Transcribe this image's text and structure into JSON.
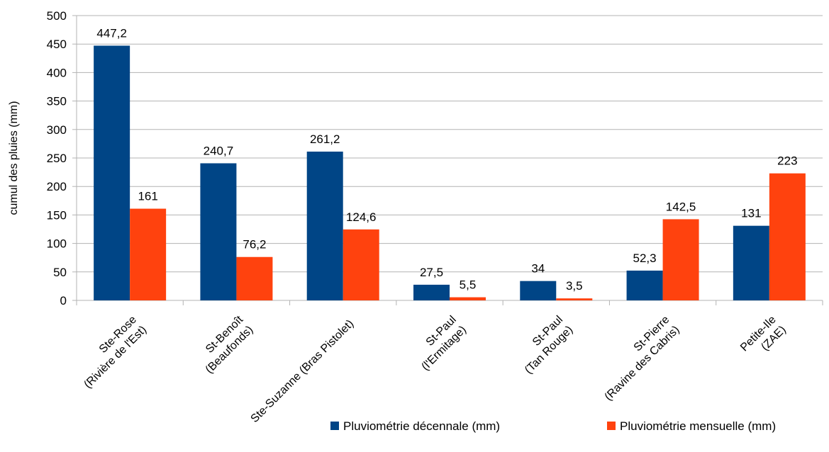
{
  "chart_data": {
    "type": "bar",
    "title": "",
    "xlabel": "",
    "ylabel": "cumul des pluies (mm)",
    "ylim": [
      0,
      500
    ],
    "yticks": [
      0,
      50,
      100,
      150,
      200,
      250,
      300,
      350,
      400,
      450,
      500
    ],
    "grid": true,
    "legend_position": "bottom-right",
    "categories": [
      [
        "Ste-Rose",
        "(Rivière de l'Est)"
      ],
      [
        "St-Benoît",
        "(Beaufonds)"
      ],
      [
        "Ste-Suzanne (Bras Pistolet)"
      ],
      [
        "St-Paul",
        "(l'Ermitage)"
      ],
      [
        "St-Paul",
        "(Tan Rouge)"
      ],
      [
        "St-Pierre",
        "(Ravine des Cabris)"
      ],
      [
        "Petite-Ile",
        "(ZAE)"
      ]
    ],
    "series": [
      {
        "name": "Pluviométrie décennale (mm)",
        "color": "#004586",
        "values": [
          447.2,
          240.7,
          261.2,
          27.5,
          34,
          52.3,
          131
        ],
        "labels": [
          "447,2",
          "240,7",
          "261,2",
          "27,5",
          "34",
          "52,3",
          "131"
        ]
      },
      {
        "name": "Pluviométrie mensuelle (mm)",
        "color": "#ff420e",
        "values": [
          161,
          76.2,
          124.6,
          5.5,
          3.5,
          142.5,
          223
        ],
        "labels": [
          "161",
          "76,2",
          "124,6",
          "5,5",
          "3,5",
          "142,5",
          "223"
        ]
      }
    ]
  }
}
